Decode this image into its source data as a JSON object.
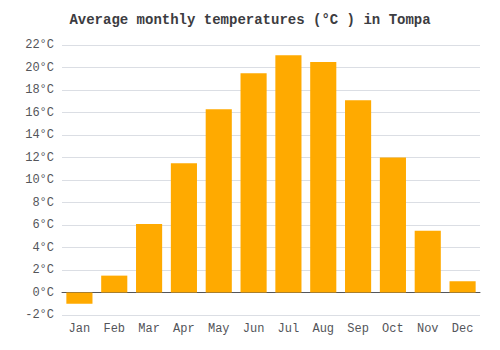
{
  "chart_data": {
    "type": "bar",
    "title": "Average monthly temperatures (°C ) in Tompa",
    "categories": [
      "Jan",
      "Feb",
      "Mar",
      "Apr",
      "May",
      "Jun",
      "Jul",
      "Aug",
      "Sep",
      "Oct",
      "Nov",
      "Dec"
    ],
    "values": [
      -1.0,
      1.5,
      6.1,
      11.5,
      16.3,
      19.5,
      21.1,
      20.5,
      17.1,
      12.0,
      5.5,
      1.0
    ],
    "color": "#FFAA00",
    "ylim": [
      -2,
      22
    ],
    "yticks": [
      {
        "value": -2,
        "label": "-2°C"
      },
      {
        "value": 0,
        "label": "0°C"
      },
      {
        "value": 2,
        "label": "2°C"
      },
      {
        "value": 4,
        "label": "4°C"
      },
      {
        "value": 6,
        "label": "6°C"
      },
      {
        "value": 8,
        "label": "8°C"
      },
      {
        "value": 10,
        "label": "10°C"
      },
      {
        "value": 12,
        "label": "12°C"
      },
      {
        "value": 14,
        "label": "14°C"
      },
      {
        "value": 16,
        "label": "16°C"
      },
      {
        "value": 18,
        "label": "18°C"
      },
      {
        "value": 20,
        "label": "20°C"
      },
      {
        "value": 22,
        "label": "22°C"
      }
    ],
    "grid": true
  }
}
